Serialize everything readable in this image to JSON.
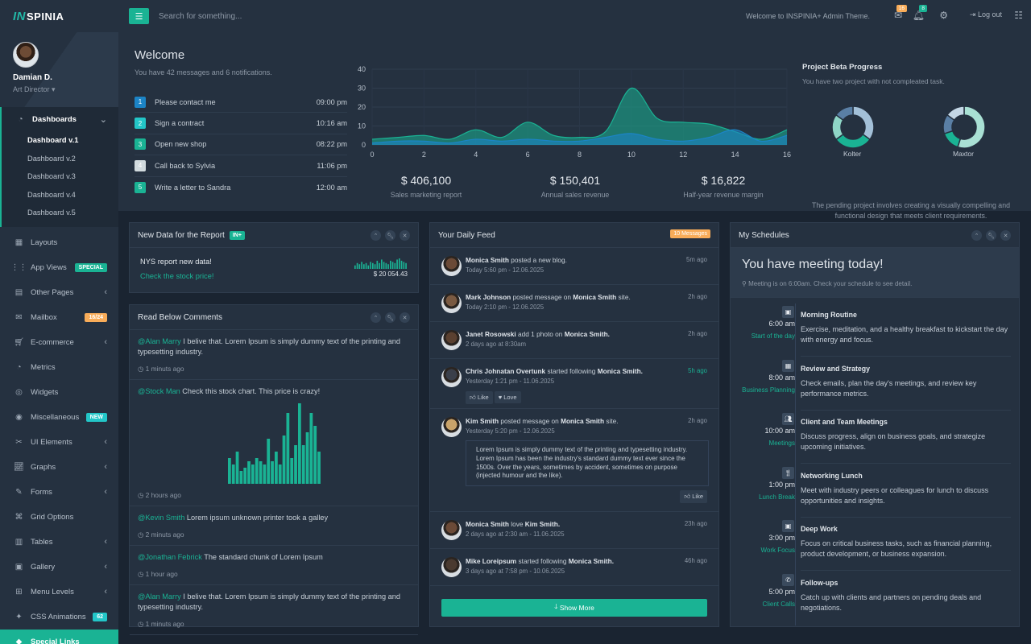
{
  "brand": {
    "logo_mark": "IN",
    "logo_text": "SPINIA"
  },
  "profile": {
    "name": "Damian D.",
    "role": "Art Director"
  },
  "sidebar": {
    "dashboards": {
      "label": "Dashboards",
      "items": [
        "Dashboard v.1",
        "Dashboard v.2",
        "Dashboard v.3",
        "Dashboard v.4",
        "Dashboard v.5"
      ]
    },
    "items": [
      {
        "label": "Layouts",
        "icon": "layout-icon"
      },
      {
        "label": "App Views",
        "icon": "grid-icon",
        "badge": "SPECIAL"
      },
      {
        "label": "Other Pages",
        "icon": "page-icon"
      },
      {
        "label": "Mailbox",
        "icon": "mail-icon",
        "badge": "16/24"
      },
      {
        "label": "E-commerce",
        "icon": "cart-icon"
      },
      {
        "label": "Metrics",
        "icon": "pie-icon"
      },
      {
        "label": "Widgets",
        "icon": "globe-icon"
      },
      {
        "label": "Miscellaneous",
        "icon": "target-icon",
        "badge": "NEW"
      },
      {
        "label": "UI Elements",
        "icon": "tools-icon"
      },
      {
        "label": "Graphs",
        "icon": "chart-icon"
      },
      {
        "label": "Forms",
        "icon": "form-icon"
      },
      {
        "label": "Grid Options",
        "icon": "grid-options-icon"
      },
      {
        "label": "Tables",
        "icon": "table-icon"
      },
      {
        "label": "Gallery",
        "icon": "image-icon"
      },
      {
        "label": "Menu Levels",
        "icon": "menu-icon"
      },
      {
        "label": "CSS Animations",
        "icon": "magic-icon",
        "badge": "62"
      },
      {
        "label": "Special Links",
        "icon": "diamond-icon"
      }
    ]
  },
  "topbar": {
    "search_placeholder": "Search for something...",
    "welcome": "Welcome to INSPINIA+ Admin Theme.",
    "mail_count": "16",
    "bell_count": "8",
    "logout": "Log out"
  },
  "welcome": {
    "title": "Welcome",
    "subtitle": "You have 42 messages and 6 notifications.",
    "todos": [
      {
        "n": "1",
        "text": "Please contact me",
        "time": "09:00 pm",
        "color": "#1c84c6"
      },
      {
        "n": "2",
        "text": "Sign a contract",
        "time": "10:16 am",
        "color": "#23c6c8"
      },
      {
        "n": "3",
        "text": "Open new shop",
        "time": "08:22 pm",
        "color": "#1ab394"
      },
      {
        "n": "4",
        "text": "Call back to Sylvia",
        "time": "11:06 pm",
        "color": "#d1dade"
      },
      {
        "n": "5",
        "text": "Write a letter to Sandra",
        "time": "12:00 am",
        "color": "#1ab394"
      }
    ]
  },
  "chart_data": {
    "type": "area",
    "x": [
      0,
      1,
      2,
      3,
      4,
      5,
      6,
      7,
      8,
      9,
      10,
      11,
      12,
      13,
      14,
      15,
      16
    ],
    "series": [
      {
        "values": [
          3,
          4,
          5,
          3,
          8,
          4,
          12,
          5,
          4,
          7,
          30,
          14,
          12,
          11,
          7,
          3,
          8
        ],
        "color": "#1ab394"
      },
      {
        "values": [
          1,
          2,
          2,
          1,
          3,
          2,
          3,
          2,
          2,
          4,
          6,
          3,
          2,
          4,
          8,
          2,
          5
        ],
        "color": "#1c84c6"
      }
    ],
    "xticks": [
      0,
      2,
      4,
      6,
      8,
      10,
      12,
      14,
      16
    ],
    "yticks": [
      0,
      10,
      20,
      30,
      40
    ],
    "ylim": [
      0,
      40
    ],
    "xlim": [
      0,
      16
    ]
  },
  "stats": [
    {
      "value": "$ 406,100",
      "label": "Sales marketing report"
    },
    {
      "value": "$ 150,401",
      "label": "Annual sales revenue"
    },
    {
      "value": "$ 16,822",
      "label": "Half-year revenue margin"
    }
  ],
  "beta": {
    "title": "Project Beta Progress",
    "subtitle": "You have two project with not compleated task.",
    "projects": [
      {
        "name": "Kolter",
        "segments": [
          0.35,
          0.3,
          0.2,
          0.15
        ],
        "colors": [
          "#a3c0d8",
          "#1ab394",
          "#8fd6c7",
          "#5a7fa5"
        ]
      },
      {
        "name": "Maxtor",
        "segments": [
          0.55,
          0.15,
          0.15,
          0.15
        ],
        "colors": [
          "#a9e0d4",
          "#1ab394",
          "#5a7fa5",
          "#c4d7e6"
        ]
      }
    ],
    "description": "The pending project involves creating a visually compelling and functional design that meets client requirements."
  },
  "report": {
    "title": "New Data for the Report",
    "badge": "IN+",
    "headline": "NYS report new data!",
    "link": "Check the stock price!",
    "value": "$ 20 054.43",
    "spark": [
      3,
      5,
      4,
      6,
      4,
      5,
      3,
      6,
      5,
      4,
      7,
      5,
      8,
      6,
      5,
      4,
      7,
      6,
      5,
      8,
      9,
      7,
      6,
      5
    ]
  },
  "comments": {
    "title": "Read Below Comments",
    "items": [
      {
        "who": "@Alan Marry",
        "text": "I belive that. Lorem Ipsum is simply dummy text of the printing and typesetting industry.",
        "when": "1 minuts ago"
      },
      {
        "who": "@Stock Man",
        "text": "Check this stock chart. This price is crazy!",
        "when": "2 hours ago"
      },
      {
        "who": "@Kevin Smith",
        "text": "Lorem ipsum unknown printer took a galley",
        "when": "2 minuts ago"
      },
      {
        "who": "@Jonathan Febrick",
        "text": "The standard chunk of Lorem Ipsum",
        "when": "1 hour ago"
      },
      {
        "who": "@Alan Marry",
        "text": "I belive that. Lorem Ipsum is simply dummy text of the printing and typesetting industry.",
        "when": "1 minuts ago"
      }
    ],
    "stock_bars": [
      8,
      6,
      10,
      4,
      5,
      7,
      6,
      8,
      7,
      6,
      14,
      7,
      10,
      6,
      15,
      22,
      8,
      12,
      25,
      12,
      16,
      22,
      18,
      10
    ]
  },
  "feed": {
    "title": "Your Daily Feed",
    "badge": "10 Messages",
    "show_more": "Show More",
    "like": "Like",
    "love": "Love",
    "items": [
      {
        "who": "Monica Smith",
        "action": "posted a new blog.",
        "target": "",
        "date": "Today 5:60 pm - 12.06.2025",
        "ago": "5m ago"
      },
      {
        "who": "Mark Johnson",
        "action": "posted message on",
        "target": "Monica Smith",
        "tail": "site.",
        "date": "Today 2:10 pm - 12.06.2025",
        "ago": "2h ago"
      },
      {
        "who": "Janet Rosowski",
        "action": "add 1 photo on",
        "target": "Monica Smith.",
        "date": "2 days ago at 8:30am",
        "ago": "2h ago"
      },
      {
        "who": "Chris Johnatan Overtunk",
        "action": "started following",
        "target": "Monica Smith.",
        "date": "Yesterday 1:21 pm - 11.06.2025",
        "ago": "5h ago"
      },
      {
        "who": "Kim Smith",
        "action": "posted message on",
        "target": "Monica Smith",
        "tail": "site.",
        "date": "Yesterday 5:20 pm - 12.06.2025",
        "ago": "2h ago",
        "quote": "Lorem Ipsum is simply dummy text of the printing and typesetting industry. Lorem Ipsum has been the industry's standard dummy text ever since the 1500s. Over the years, sometimes by accident, sometimes on purpose (injected humour and the like)."
      },
      {
        "who": "Monica Smith",
        "action": "love",
        "target": "Kim Smith.",
        "date": "2 days ago at 2:30 am - 11.06.2025",
        "ago": "23h ago"
      },
      {
        "who": "Mike Loreipsum",
        "action": "started following",
        "target": "Monica Smith.",
        "date": "3 days ago at 7:58 pm - 10.06.2025",
        "ago": "46h ago"
      }
    ]
  },
  "schedule": {
    "title": "My Schedules",
    "hero": "You have meeting today!",
    "hero_sub": "Meeting is on 6:00am. Check your schedule to see detail.",
    "items": [
      {
        "time": "6:00 am",
        "tag": "Start of the day",
        "title": "Morning Routine",
        "desc": "Exercise, meditation, and a healthy breakfast to kickstart the day with energy and focus.",
        "icon": "briefcase-icon"
      },
      {
        "time": "8:00 am",
        "tag": "Business Planning",
        "title": "Review and Strategy",
        "desc": "Check emails, plan the day's meetings, and review key performance metrics.",
        "icon": "calendar-icon"
      },
      {
        "time": "10:00 am",
        "tag": "Meetings",
        "title": "Client and Team Meetings",
        "desc": "Discuss progress, align on business goals, and strategize upcoming initiatives.",
        "icon": "users-icon"
      },
      {
        "time": "1:00 pm",
        "tag": "Lunch Break",
        "title": "Networking Lunch",
        "desc": "Meet with industry peers or colleagues for lunch to discuss opportunities and insights.",
        "icon": "cutlery-icon"
      },
      {
        "time": "3:00 pm",
        "tag": "Work Focus",
        "title": "Deep Work",
        "desc": "Focus on critical business tasks, such as financial planning, product development, or business expansion.",
        "icon": "briefcase-icon"
      },
      {
        "time": "5:00 pm",
        "tag": "Client Calls",
        "title": "Follow-ups",
        "desc": "Catch up with clients and partners on pending deals and negotiations.",
        "icon": "phone-icon"
      }
    ]
  }
}
